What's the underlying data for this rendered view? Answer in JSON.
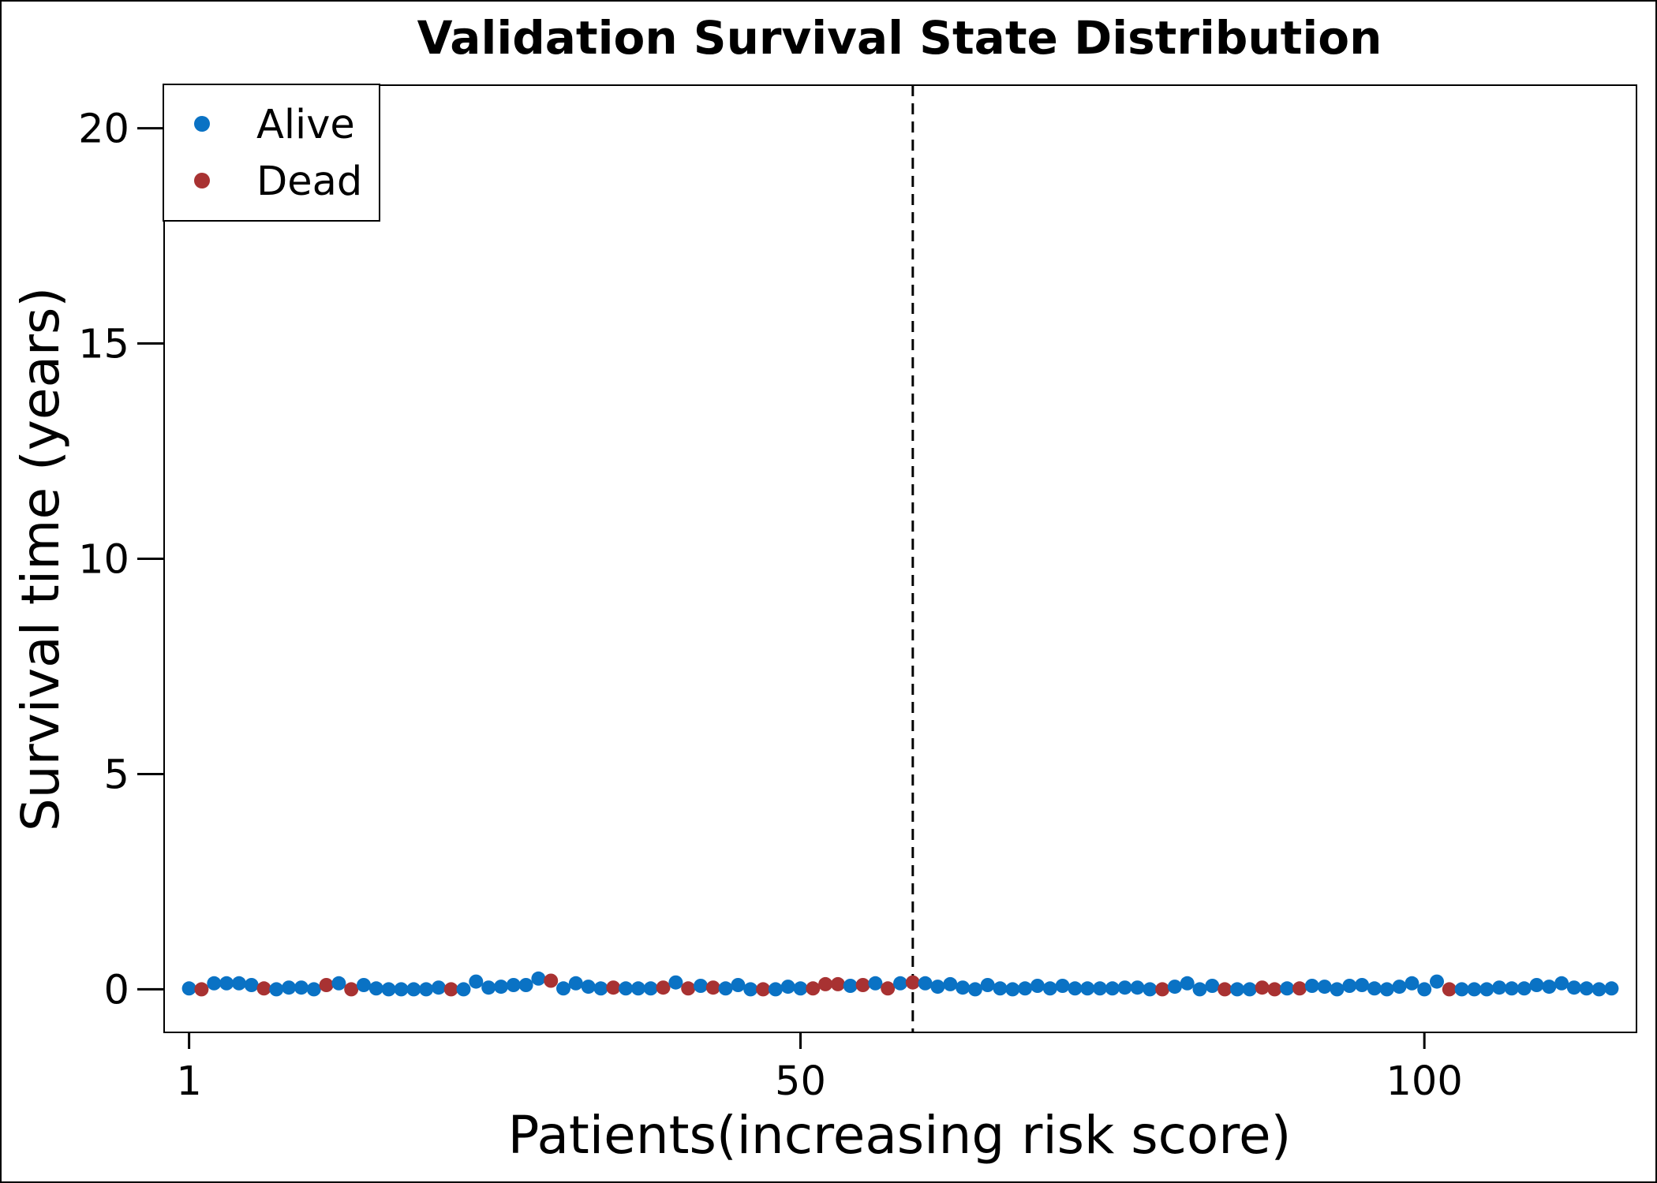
{
  "chart_data": {
    "type": "scatter",
    "title": "Validation Survival State Distribution",
    "xlabel": "Patients(increasing risk score)",
    "ylabel": "Survival time (years)",
    "xlim": [
      -1,
      117
    ],
    "ylim": [
      -1,
      21
    ],
    "xticks": [
      1,
      50,
      100
    ],
    "yticks": [
      0,
      5,
      10,
      15,
      20
    ],
    "cutoff_x": 59,
    "legend_position": "top-left",
    "grid": false,
    "series": [
      {
        "name": "Alive",
        "color": "#0a72c4"
      },
      {
        "name": "Dead",
        "color": "#a83232"
      }
    ],
    "points": [
      {
        "x": 1,
        "y": 0.02,
        "s": "Alive"
      },
      {
        "x": 2,
        "y": 0.0,
        "s": "Dead"
      },
      {
        "x": 3,
        "y": 0.14,
        "s": "Alive"
      },
      {
        "x": 4,
        "y": 0.14,
        "s": "Alive"
      },
      {
        "x": 5,
        "y": 0.14,
        "s": "Alive"
      },
      {
        "x": 6,
        "y": 0.1,
        "s": "Alive"
      },
      {
        "x": 7,
        "y": 0.02,
        "s": "Dead"
      },
      {
        "x": 8,
        "y": 0.0,
        "s": "Alive"
      },
      {
        "x": 9,
        "y": 0.04,
        "s": "Alive"
      },
      {
        "x": 10,
        "y": 0.04,
        "s": "Alive"
      },
      {
        "x": 11,
        "y": 0.0,
        "s": "Alive"
      },
      {
        "x": 12,
        "y": 0.1,
        "s": "Dead"
      },
      {
        "x": 13,
        "y": 0.14,
        "s": "Alive"
      },
      {
        "x": 14,
        "y": 0.0,
        "s": "Dead"
      },
      {
        "x": 15,
        "y": 0.1,
        "s": "Alive"
      },
      {
        "x": 16,
        "y": 0.02,
        "s": "Alive"
      },
      {
        "x": 17,
        "y": 0.0,
        "s": "Alive"
      },
      {
        "x": 18,
        "y": 0.0,
        "s": "Alive"
      },
      {
        "x": 19,
        "y": 0.0,
        "s": "Alive"
      },
      {
        "x": 20,
        "y": 0.0,
        "s": "Alive"
      },
      {
        "x": 21,
        "y": 0.04,
        "s": "Alive"
      },
      {
        "x": 22,
        "y": 0.0,
        "s": "Dead"
      },
      {
        "x": 23,
        "y": 0.0,
        "s": "Alive"
      },
      {
        "x": 24,
        "y": 0.18,
        "s": "Alive"
      },
      {
        "x": 25,
        "y": 0.04,
        "s": "Alive"
      },
      {
        "x": 26,
        "y": 0.06,
        "s": "Alive"
      },
      {
        "x": 27,
        "y": 0.1,
        "s": "Alive"
      },
      {
        "x": 28,
        "y": 0.1,
        "s": "Alive"
      },
      {
        "x": 29,
        "y": 0.25,
        "s": "Alive"
      },
      {
        "x": 30,
        "y": 0.2,
        "s": "Dead"
      },
      {
        "x": 31,
        "y": 0.02,
        "s": "Alive"
      },
      {
        "x": 32,
        "y": 0.14,
        "s": "Alive"
      },
      {
        "x": 33,
        "y": 0.06,
        "s": "Alive"
      },
      {
        "x": 34,
        "y": 0.02,
        "s": "Alive"
      },
      {
        "x": 35,
        "y": 0.04,
        "s": "Dead"
      },
      {
        "x": 36,
        "y": 0.02,
        "s": "Alive"
      },
      {
        "x": 37,
        "y": 0.02,
        "s": "Alive"
      },
      {
        "x": 38,
        "y": 0.02,
        "s": "Alive"
      },
      {
        "x": 39,
        "y": 0.04,
        "s": "Dead"
      },
      {
        "x": 40,
        "y": 0.16,
        "s": "Alive"
      },
      {
        "x": 41,
        "y": 0.02,
        "s": "Dead"
      },
      {
        "x": 42,
        "y": 0.08,
        "s": "Alive"
      },
      {
        "x": 43,
        "y": 0.04,
        "s": "Dead"
      },
      {
        "x": 44,
        "y": 0.02,
        "s": "Alive"
      },
      {
        "x": 45,
        "y": 0.1,
        "s": "Alive"
      },
      {
        "x": 46,
        "y": 0.0,
        "s": "Alive"
      },
      {
        "x": 47,
        "y": 0.0,
        "s": "Dead"
      },
      {
        "x": 48,
        "y": 0.0,
        "s": "Alive"
      },
      {
        "x": 49,
        "y": 0.06,
        "s": "Alive"
      },
      {
        "x": 50,
        "y": 0.02,
        "s": "Alive"
      },
      {
        "x": 51,
        "y": 0.02,
        "s": "Dead"
      },
      {
        "x": 52,
        "y": 0.12,
        "s": "Dead"
      },
      {
        "x": 53,
        "y": 0.12,
        "s": "Dead"
      },
      {
        "x": 54,
        "y": 0.08,
        "s": "Alive"
      },
      {
        "x": 55,
        "y": 0.1,
        "s": "Dead"
      },
      {
        "x": 56,
        "y": 0.14,
        "s": "Alive"
      },
      {
        "x": 57,
        "y": 0.02,
        "s": "Dead"
      },
      {
        "x": 58,
        "y": 0.14,
        "s": "Alive"
      },
      {
        "x": 59,
        "y": 0.16,
        "s": "Dead"
      },
      {
        "x": 60,
        "y": 0.14,
        "s": "Alive"
      },
      {
        "x": 61,
        "y": 0.06,
        "s": "Alive"
      },
      {
        "x": 62,
        "y": 0.12,
        "s": "Alive"
      },
      {
        "x": 63,
        "y": 0.04,
        "s": "Alive"
      },
      {
        "x": 64,
        "y": 0.0,
        "s": "Alive"
      },
      {
        "x": 65,
        "y": 0.1,
        "s": "Alive"
      },
      {
        "x": 66,
        "y": 0.02,
        "s": "Alive"
      },
      {
        "x": 67,
        "y": 0.0,
        "s": "Alive"
      },
      {
        "x": 68,
        "y": 0.02,
        "s": "Alive"
      },
      {
        "x": 69,
        "y": 0.08,
        "s": "Alive"
      },
      {
        "x": 70,
        "y": 0.02,
        "s": "Alive"
      },
      {
        "x": 71,
        "y": 0.08,
        "s": "Alive"
      },
      {
        "x": 72,
        "y": 0.02,
        "s": "Alive"
      },
      {
        "x": 73,
        "y": 0.02,
        "s": "Alive"
      },
      {
        "x": 74,
        "y": 0.02,
        "s": "Alive"
      },
      {
        "x": 75,
        "y": 0.02,
        "s": "Alive"
      },
      {
        "x": 76,
        "y": 0.04,
        "s": "Alive"
      },
      {
        "x": 77,
        "y": 0.04,
        "s": "Alive"
      },
      {
        "x": 78,
        "y": 0.0,
        "s": "Alive"
      },
      {
        "x": 79,
        "y": 0.0,
        "s": "Dead"
      },
      {
        "x": 80,
        "y": 0.06,
        "s": "Alive"
      },
      {
        "x": 81,
        "y": 0.14,
        "s": "Alive"
      },
      {
        "x": 82,
        "y": 0.0,
        "s": "Alive"
      },
      {
        "x": 83,
        "y": 0.08,
        "s": "Alive"
      },
      {
        "x": 84,
        "y": 0.0,
        "s": "Dead"
      },
      {
        "x": 85,
        "y": 0.0,
        "s": "Alive"
      },
      {
        "x": 86,
        "y": 0.0,
        "s": "Alive"
      },
      {
        "x": 87,
        "y": 0.04,
        "s": "Dead"
      },
      {
        "x": 88,
        "y": 0.0,
        "s": "Dead"
      },
      {
        "x": 89,
        "y": 0.02,
        "s": "Alive"
      },
      {
        "x": 90,
        "y": 0.02,
        "s": "Dead"
      },
      {
        "x": 91,
        "y": 0.08,
        "s": "Alive"
      },
      {
        "x": 92,
        "y": 0.06,
        "s": "Alive"
      },
      {
        "x": 93,
        "y": 0.0,
        "s": "Alive"
      },
      {
        "x": 94,
        "y": 0.08,
        "s": "Alive"
      },
      {
        "x": 95,
        "y": 0.1,
        "s": "Alive"
      },
      {
        "x": 96,
        "y": 0.02,
        "s": "Alive"
      },
      {
        "x": 97,
        "y": 0.0,
        "s": "Alive"
      },
      {
        "x": 98,
        "y": 0.06,
        "s": "Alive"
      },
      {
        "x": 99,
        "y": 0.14,
        "s": "Alive"
      },
      {
        "x": 100,
        "y": 0.0,
        "s": "Alive"
      },
      {
        "x": 101,
        "y": 0.18,
        "s": "Alive"
      },
      {
        "x": 102,
        "y": 0.0,
        "s": "Dead"
      },
      {
        "x": 103,
        "y": 0.0,
        "s": "Alive"
      },
      {
        "x": 104,
        "y": 0.0,
        "s": "Alive"
      },
      {
        "x": 105,
        "y": 0.0,
        "s": "Alive"
      },
      {
        "x": 106,
        "y": 0.04,
        "s": "Alive"
      },
      {
        "x": 107,
        "y": 0.02,
        "s": "Alive"
      },
      {
        "x": 108,
        "y": 0.02,
        "s": "Alive"
      },
      {
        "x": 109,
        "y": 0.1,
        "s": "Alive"
      },
      {
        "x": 110,
        "y": 0.06,
        "s": "Alive"
      },
      {
        "x": 111,
        "y": 0.14,
        "s": "Alive"
      },
      {
        "x": 112,
        "y": 0.04,
        "s": "Alive"
      },
      {
        "x": 113,
        "y": 0.02,
        "s": "Alive"
      },
      {
        "x": 114,
        "y": 0.0,
        "s": "Alive"
      },
      {
        "x": 115,
        "y": 0.02,
        "s": "Alive"
      }
    ]
  }
}
